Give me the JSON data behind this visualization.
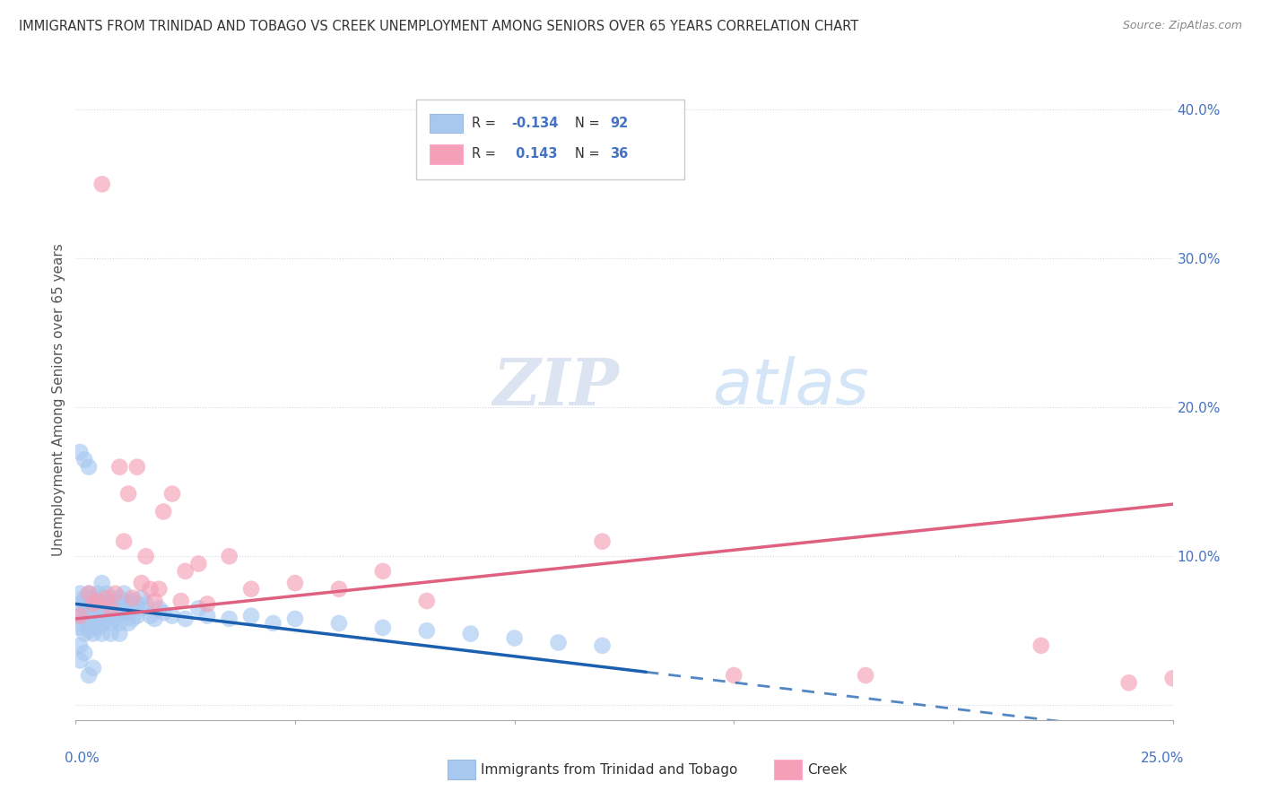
{
  "title": "IMMIGRANTS FROM TRINIDAD AND TOBAGO VS CREEK UNEMPLOYMENT AMONG SENIORS OVER 65 YEARS CORRELATION CHART",
  "source": "Source: ZipAtlas.com",
  "ylabel": "Unemployment Among Seniors over 65 years",
  "legend1_label": "Immigrants from Trinidad and Tobago",
  "legend2_label": "Creek",
  "R1": -0.134,
  "N1": 92,
  "R2": 0.143,
  "N2": 36,
  "color_blue": "#a8c8f0",
  "color_blue_line": "#1a5fb0",
  "color_pink": "#f4a0b8",
  "color_pink_line": "#e06080",
  "background_color": "#ffffff",
  "grid_color": "#d0d8e8",
  "xlim": [
    0.0,
    0.25
  ],
  "ylim": [
    -0.01,
    0.42
  ],
  "blue_scatter_x": [
    0.001,
    0.001,
    0.001,
    0.001,
    0.001,
    0.002,
    0.002,
    0.002,
    0.002,
    0.002,
    0.003,
    0.003,
    0.003,
    0.003,
    0.003,
    0.003,
    0.004,
    0.004,
    0.004,
    0.004,
    0.004,
    0.005,
    0.005,
    0.005,
    0.005,
    0.005,
    0.006,
    0.006,
    0.006,
    0.006,
    0.006,
    0.006,
    0.007,
    0.007,
    0.007,
    0.007,
    0.007,
    0.008,
    0.008,
    0.008,
    0.008,
    0.008,
    0.009,
    0.009,
    0.009,
    0.009,
    0.01,
    0.01,
    0.01,
    0.01,
    0.011,
    0.011,
    0.011,
    0.011,
    0.012,
    0.012,
    0.012,
    0.013,
    0.013,
    0.013,
    0.014,
    0.014,
    0.015,
    0.015,
    0.016,
    0.017,
    0.018,
    0.019,
    0.02,
    0.022,
    0.025,
    0.028,
    0.03,
    0.035,
    0.04,
    0.045,
    0.05,
    0.06,
    0.07,
    0.08,
    0.09,
    0.1,
    0.11,
    0.12,
    0.001,
    0.002,
    0.003,
    0.001,
    0.002,
    0.001,
    0.004,
    0.003
  ],
  "blue_scatter_y": [
    0.075,
    0.06,
    0.055,
    0.068,
    0.052,
    0.07,
    0.065,
    0.058,
    0.072,
    0.048,
    0.065,
    0.07,
    0.058,
    0.062,
    0.075,
    0.05,
    0.068,
    0.062,
    0.055,
    0.072,
    0.048,
    0.065,
    0.07,
    0.058,
    0.075,
    0.052,
    0.068,
    0.062,
    0.055,
    0.072,
    0.048,
    0.082,
    0.065,
    0.07,
    0.058,
    0.075,
    0.062,
    0.068,
    0.062,
    0.055,
    0.072,
    0.048,
    0.065,
    0.07,
    0.058,
    0.062,
    0.068,
    0.055,
    0.072,
    0.048,
    0.065,
    0.07,
    0.062,
    0.075,
    0.068,
    0.055,
    0.062,
    0.07,
    0.058,
    0.065,
    0.068,
    0.06,
    0.072,
    0.065,
    0.068,
    0.06,
    0.058,
    0.065,
    0.062,
    0.06,
    0.058,
    0.065,
    0.06,
    0.058,
    0.06,
    0.055,
    0.058,
    0.055,
    0.052,
    0.05,
    0.048,
    0.045,
    0.042,
    0.04,
    0.17,
    0.165,
    0.16,
    0.04,
    0.035,
    0.03,
    0.025,
    0.02
  ],
  "pink_scatter_x": [
    0.001,
    0.003,
    0.004,
    0.005,
    0.006,
    0.007,
    0.008,
    0.009,
    0.01,
    0.011,
    0.012,
    0.013,
    0.014,
    0.015,
    0.016,
    0.017,
    0.018,
    0.019,
    0.02,
    0.022,
    0.024,
    0.025,
    0.028,
    0.03,
    0.035,
    0.04,
    0.05,
    0.06,
    0.07,
    0.08,
    0.12,
    0.15,
    0.18,
    0.22,
    0.24,
    0.25
  ],
  "pink_scatter_y": [
    0.06,
    0.075,
    0.068,
    0.07,
    0.35,
    0.072,
    0.065,
    0.075,
    0.16,
    0.11,
    0.142,
    0.072,
    0.16,
    0.082,
    0.1,
    0.078,
    0.07,
    0.078,
    0.13,
    0.142,
    0.07,
    0.09,
    0.095,
    0.068,
    0.1,
    0.078,
    0.082,
    0.078,
    0.09,
    0.07,
    0.11,
    0.02,
    0.02,
    0.04,
    0.015,
    0.018
  ]
}
